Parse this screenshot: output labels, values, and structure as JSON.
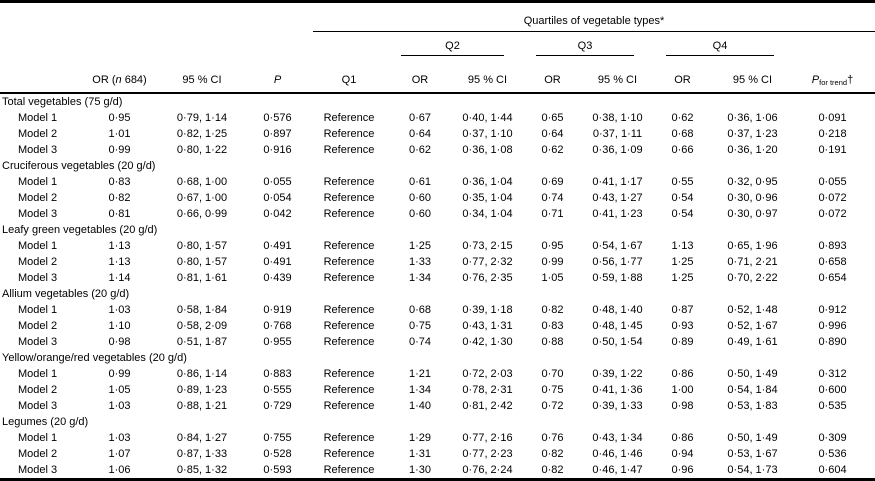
{
  "table": {
    "spanner_title": "Quartiles of vegetable types*",
    "q_groups": [
      "Q2",
      "Q3",
      "Q4"
    ],
    "headers": {
      "or_prefix": "OR (",
      "or_n_italic": "n",
      "or_suffix": " 684)",
      "ci": "95 % CI",
      "p": "P",
      "q1": "Q1",
      "or": "OR",
      "p_trend_p": "P",
      "p_trend_sub": "for trend",
      "p_trend_dagger": "†"
    },
    "sections": [
      {
        "label": "Total vegetables (75 g/d)",
        "rows": [
          {
            "label": "Model 1",
            "or": "0·95",
            "ci": "0·79, 1·14",
            "p": "0·576",
            "q1": "Reference",
            "q2_or": "0·67",
            "q2_ci": "0·40, 1·44",
            "q3_or": "0·65",
            "q3_ci": "0·38, 1·10",
            "q4_or": "0·62",
            "q4_ci": "0·36, 1·06",
            "p_trend": "0·091"
          },
          {
            "label": "Model 2",
            "or": "1·01",
            "ci": "0·82, 1·25",
            "p": "0·897",
            "q1": "Reference",
            "q2_or": "0·64",
            "q2_ci": "0·37, 1·10",
            "q3_or": "0·64",
            "q3_ci": "0·37, 1·11",
            "q4_or": "0·68",
            "q4_ci": "0·37, 1·23",
            "p_trend": "0·218"
          },
          {
            "label": "Model 3",
            "or": "0·99",
            "ci": "0·80, 1·22",
            "p": "0·916",
            "q1": "Reference",
            "q2_or": "0·62",
            "q2_ci": "0·36, 1·08",
            "q3_or": "0·62",
            "q3_ci": "0·36, 1·09",
            "q4_or": "0·66",
            "q4_ci": "0·36, 1·20",
            "p_trend": "0·191"
          }
        ]
      },
      {
        "label": "Cruciferous vegetables (20 g/d)",
        "rows": [
          {
            "label": "Model 1",
            "or": "0·83",
            "ci": "0·68, 1·00",
            "p": "0·055",
            "q1": "Reference",
            "q2_or": "0·61",
            "q2_ci": "0·36, 1·04",
            "q3_or": "0·69",
            "q3_ci": "0·41, 1·17",
            "q4_or": "0·55",
            "q4_ci": "0·32, 0·95",
            "p_trend": "0·055"
          },
          {
            "label": "Model 2",
            "or": "0·82",
            "ci": "0·67, 1·00",
            "p": "0·054",
            "q1": "Reference",
            "q2_or": "0·60",
            "q2_ci": "0·35, 1·04",
            "q3_or": "0·74",
            "q3_ci": "0·43, 1·27",
            "q4_or": "0·54",
            "q4_ci": "0·30, 0·96",
            "p_trend": "0·072"
          },
          {
            "label": "Model 3",
            "or": "0·81",
            "ci": "0·66, 0·99",
            "p": "0·042",
            "q1": "Reference",
            "q2_or": "0·60",
            "q2_ci": "0·34, 1·04",
            "q3_or": "0·71",
            "q3_ci": "0·41, 1·23",
            "q4_or": "0·54",
            "q4_ci": "0·30, 0·97",
            "p_trend": "0·072"
          }
        ]
      },
      {
        "label": "Leafy green vegetables (20 g/d)",
        "rows": [
          {
            "label": "Model 1",
            "or": "1·13",
            "ci": "0·80, 1·57",
            "p": "0·491",
            "q1": "Reference",
            "q2_or": "1·25",
            "q2_ci": "0·73, 2·15",
            "q3_or": "0·95",
            "q3_ci": "0·54, 1·67",
            "q4_or": "1·13",
            "q4_ci": "0·65, 1·96",
            "p_trend": "0·893"
          },
          {
            "label": "Model 2",
            "or": "1·13",
            "ci": "0·80, 1·57",
            "p": "0·491",
            "q1": "Reference",
            "q2_or": "1·33",
            "q2_ci": "0·77, 2·32",
            "q3_or": "0·99",
            "q3_ci": "0·56, 1·77",
            "q4_or": "1·25",
            "q4_ci": "0·71, 2·21",
            "p_trend": "0·658"
          },
          {
            "label": "Model 3",
            "or": "1·14",
            "ci": "0·81, 1·61",
            "p": "0·439",
            "q1": "Reference",
            "q2_or": "1·34",
            "q2_ci": "0·76, 2·35",
            "q3_or": "1·05",
            "q3_ci": "0·59, 1·88",
            "q4_or": "1·25",
            "q4_ci": "0·70, 2·22",
            "p_trend": "0·654"
          }
        ]
      },
      {
        "label": "Allium vegetables (20 g/d)",
        "rows": [
          {
            "label": "Model 1",
            "or": "1·03",
            "ci": "0·58, 1·84",
            "p": "0·919",
            "q1": "Reference",
            "q2_or": "0·68",
            "q2_ci": "0·39, 1·18",
            "q3_or": "0·82",
            "q3_ci": "0·48, 1·40",
            "q4_or": "0·87",
            "q4_ci": "0·52, 1·48",
            "p_trend": "0·912"
          },
          {
            "label": "Model 2",
            "or": "1·10",
            "ci": "0·58, 2·09",
            "p": "0·768",
            "q1": "Reference",
            "q2_or": "0·75",
            "q2_ci": "0·43, 1·31",
            "q3_or": "0·83",
            "q3_ci": "0·48, 1·45",
            "q4_or": "0·93",
            "q4_ci": "0·52, 1·67",
            "p_trend": "0·996"
          },
          {
            "label": "Model 3",
            "or": "0·98",
            "ci": "0·51, 1·87",
            "p": "0·955",
            "q1": "Reference",
            "q2_or": "0·74",
            "q2_ci": "0·42, 1·30",
            "q3_or": "0·88",
            "q3_ci": "0·50, 1·54",
            "q4_or": "0·89",
            "q4_ci": "0·49, 1·61",
            "p_trend": "0·890"
          }
        ]
      },
      {
        "label": "Yellow/orange/red vegetables (20 g/d)",
        "rows": [
          {
            "label": "Model 1",
            "or": "0·99",
            "ci": "0·86, 1·14",
            "p": "0·883",
            "q1": "Reference",
            "q2_or": "1·21",
            "q2_ci": "0·72, 2·03",
            "q3_or": "0·70",
            "q3_ci": "0·39, 1·22",
            "q4_or": "0·86",
            "q4_ci": "0·50, 1·49",
            "p_trend": "0·312"
          },
          {
            "label": "Model 2",
            "or": "1·05",
            "ci": "0·89, 1·23",
            "p": "0·555",
            "q1": "Reference",
            "q2_or": "1·34",
            "q2_ci": "0·78, 2·31",
            "q3_or": "0·75",
            "q3_ci": "0·41, 1·36",
            "q4_or": "1·00",
            "q4_ci": "0·54, 1·84",
            "p_trend": "0·600"
          },
          {
            "label": "Model 3",
            "or": "1·03",
            "ci": "0·88, 1·21",
            "p": "0·729",
            "q1": "Reference",
            "q2_or": "1·40",
            "q2_ci": "0·81, 2·42",
            "q3_or": "0·72",
            "q3_ci": "0·39, 1·33",
            "q4_or": "0·98",
            "q4_ci": "0·53, 1·83",
            "p_trend": "0·535"
          }
        ]
      },
      {
        "label": "Legumes (20 g/d)",
        "rows": [
          {
            "label": "Model 1",
            "or": "1·03",
            "ci": "0·84, 1·27",
            "p": "0·755",
            "q1": "Reference",
            "q2_or": "1·29",
            "q2_ci": "0·77, 2·16",
            "q3_or": "0·76",
            "q3_ci": "0·43, 1·34",
            "q4_or": "0·86",
            "q4_ci": "0·50, 1·49",
            "p_trend": "0·309"
          },
          {
            "label": "Model 2",
            "or": "1·07",
            "ci": "0·87, 1·33",
            "p": "0·528",
            "q1": "Reference",
            "q2_or": "1·31",
            "q2_ci": "0·77, 2·23",
            "q3_or": "0·82",
            "q3_ci": "0·46, 1·46",
            "q4_or": "0·94",
            "q4_ci": "0·53, 1·67",
            "p_trend": "0·536"
          },
          {
            "label": "Model 3",
            "or": "1·06",
            "ci": "0·85, 1·32",
            "p": "0·593",
            "q1": "Reference",
            "q2_or": "1·30",
            "q2_ci": "0·76, 2·24",
            "q3_or": "0·82",
            "q3_ci": "0·46, 1·47",
            "q4_or": "0·96",
            "q4_ci": "0·54, 1·73",
            "p_trend": "0·604"
          }
        ]
      }
    ]
  }
}
